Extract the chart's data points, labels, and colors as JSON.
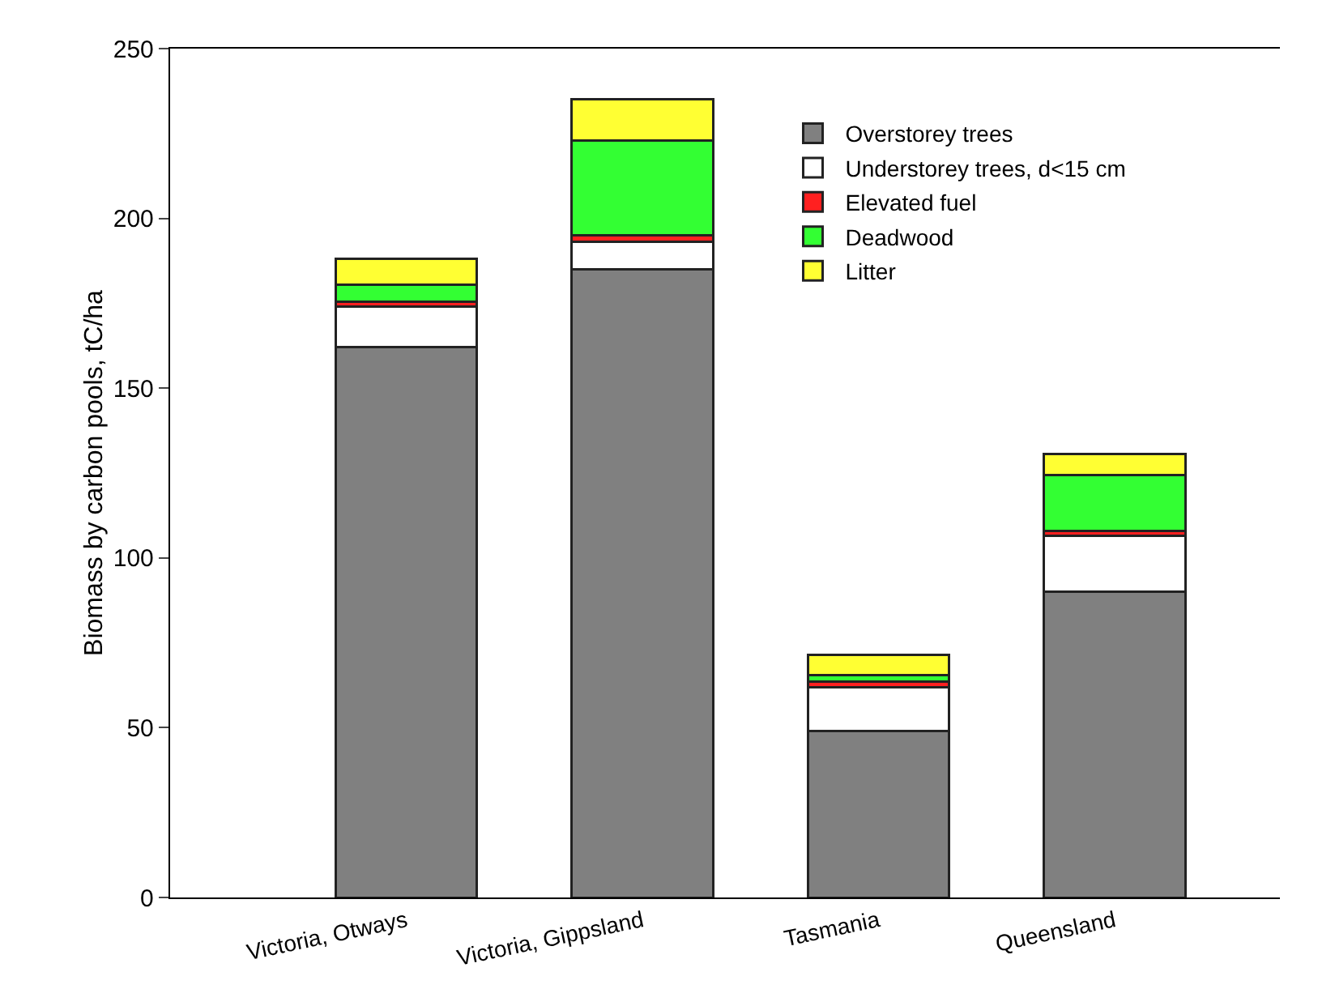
{
  "chart_data": {
    "type": "bar",
    "stacked": true,
    "ylabel": "Biomass by carbon pools, tC/ha",
    "categories": [
      "Victoria, Otways",
      "Victoria, Gippsland",
      "Tasmania",
      "Queensland"
    ],
    "series": [
      {
        "name": "Overstorey trees",
        "color": "#808080",
        "values": [
          162,
          185,
          49,
          90
        ]
      },
      {
        "name": "Understorey trees, d<15 cm",
        "color": "#ffffff",
        "values": [
          12,
          8,
          13,
          16.5
        ]
      },
      {
        "name": "Elevated fuel",
        "color": "#ff2020",
        "values": [
          1.5,
          2,
          1.5,
          1.5
        ]
      },
      {
        "name": "Deadwood",
        "color": "#33ff33",
        "values": [
          5,
          28,
          2,
          16.5
        ]
      },
      {
        "name": "Litter",
        "color": "#ffff33",
        "values": [
          7.5,
          12,
          6,
          6
        ]
      }
    ],
    "ylim": [
      0,
      250
    ],
    "yticks": [
      0,
      50,
      100,
      150,
      200,
      250
    ],
    "grid": false,
    "legend": "top right"
  }
}
